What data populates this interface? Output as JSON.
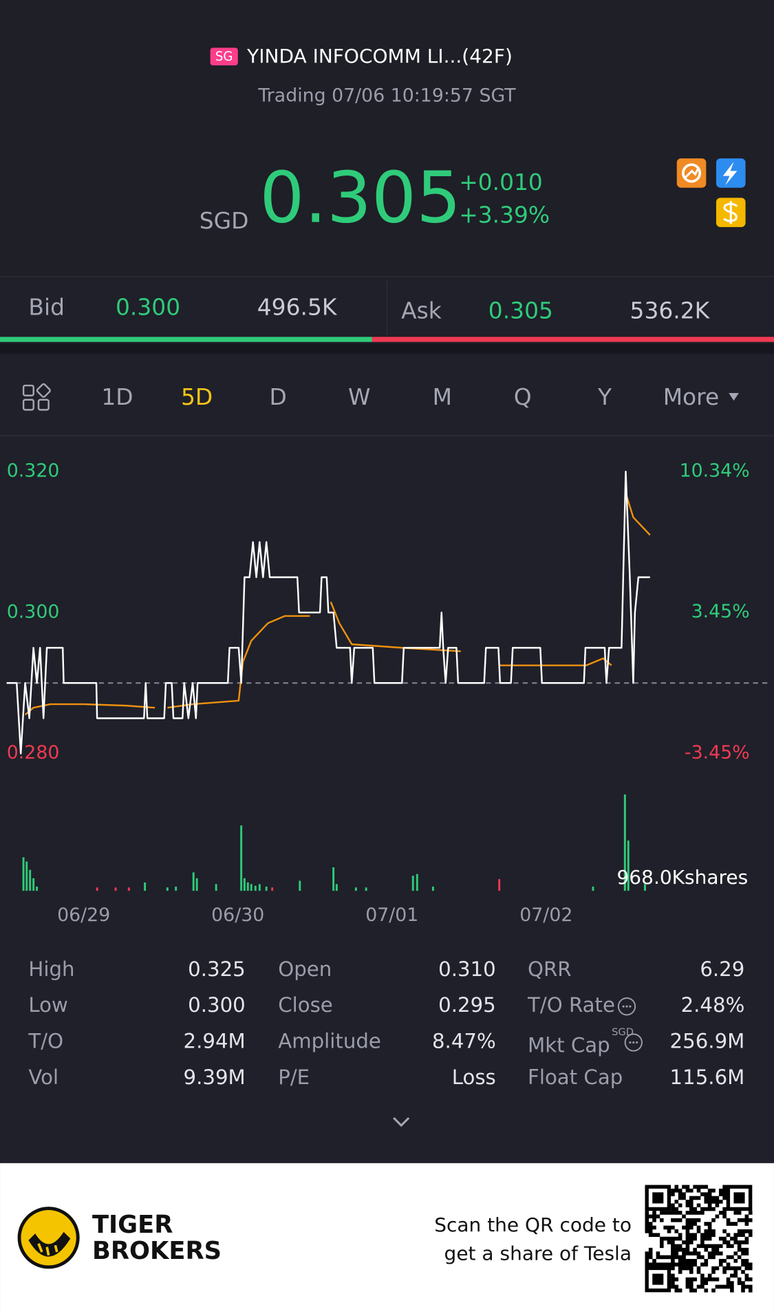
{
  "header": {
    "badge": "SG",
    "title": "YINDA INFOCOMM LI...(42F)",
    "status": "Trading 07/06 10:19:57 SGT"
  },
  "quote": {
    "currency": "SGD",
    "price": "0.305",
    "change": "+0.010",
    "change_pct": "+3.39%"
  },
  "bid_ask": {
    "bid": {
      "label": "Bid",
      "price": "0.300",
      "volume": {
        "value": 496500,
        "label": "496.5K"
      }
    },
    "ask": {
      "label": "Ask",
      "price": "0.305",
      "volume": {
        "value": 536200,
        "label": "536.2K"
      }
    }
  },
  "tabs": {
    "items": [
      "1D",
      "5D",
      "D",
      "W",
      "M",
      "Q",
      "Y",
      "More"
    ],
    "active_index": 1
  },
  "chart_data": {
    "type": "line",
    "xlim": [
      -0.043,
      4.978
    ],
    "xticks": [
      {
        "value": 0.5,
        "label": "06/29"
      },
      {
        "value": 1.5,
        "label": "06/30"
      },
      {
        "value": 2.5,
        "label": "07/01"
      },
      {
        "value": 3.5,
        "label": "07/02"
      }
    ],
    "ylim": [
      0.278,
      0.324
    ],
    "yticks": [
      {
        "value": 0.32,
        "label": "0.320"
      },
      {
        "value": 0.3,
        "label": "0.300"
      },
      {
        "value": 0.28,
        "label": "0.280"
      }
    ],
    "y2lim": [
      -4.14,
      11.72
    ],
    "y2ticks": [
      {
        "value": 10.34,
        "label": "10.34%"
      },
      {
        "value": 3.45,
        "label": "3.45%"
      },
      {
        "value": -3.45,
        "label": "-3.45%"
      }
    ],
    "reference_line": 0.29,
    "up_color": "#2fcb7a",
    "down_color": "#ef3a52",
    "grid": false,
    "series": [
      {
        "color": "#ffffff",
        "x": [
          0,
          0.065,
          0.092,
          0.12,
          0.147,
          0.174,
          0.196,
          0.217,
          0.239,
          0.261,
          0.364,
          0.37,
          0.582,
          0.587,
          0.891,
          0.902,
          0.913,
          1.022,
          1.033,
          1.071,
          1.082,
          1.141,
          1.152,
          1.179,
          1.207,
          1.228,
          1.239,
          1.435,
          1.446,
          1.505,
          1.522,
          1.543,
          1.576,
          1.598,
          1.62,
          1.641,
          1.663,
          1.685,
          1.707,
          1.886,
          1.897,
          2.033,
          2.043,
          2.076,
          2.087,
          2.12,
          2.141,
          2.228,
          2.239,
          2.255,
          2.375,
          2.386,
          2.565,
          2.576,
          2.81,
          2.821,
          2.832,
          2.848,
          2.864,
          2.918,
          2.929,
          3.098,
          3.109,
          3.19,
          3.201,
          3.272,
          3.283,
          3.462,
          3.473,
          3.745,
          3.755,
          3.88,
          3.891,
          3.908,
          3.989,
          4.016,
          4.043,
          4.065,
          4.076,
          4.098,
          4.174
        ],
        "values": [
          0.29,
          0.29,
          0.28,
          0.29,
          0.285,
          0.295,
          0.29,
          0.295,
          0.285,
          0.295,
          0.295,
          0.29,
          0.29,
          0.285,
          0.285,
          0.29,
          0.285,
          0.285,
          0.29,
          0.29,
          0.285,
          0.285,
          0.29,
          0.285,
          0.29,
          0.285,
          0.29,
          0.29,
          0.295,
          0.295,
          0.29,
          0.305,
          0.305,
          0.31,
          0.305,
          0.31,
          0.305,
          0.31,
          0.305,
          0.305,
          0.3,
          0.3,
          0.305,
          0.305,
          0.3,
          0.3,
          0.295,
          0.295,
          0.29,
          0.295,
          0.295,
          0.29,
          0.29,
          0.295,
          0.295,
          0.3,
          0.295,
          0.29,
          0.295,
          0.295,
          0.29,
          0.29,
          0.295,
          0.295,
          0.29,
          0.29,
          0.295,
          0.295,
          0.29,
          0.29,
          0.295,
          0.295,
          0.29,
          0.295,
          0.295,
          0.32,
          0.305,
          0.29,
          0.3,
          0.305,
          0.305
        ]
      },
      {
        "color": "#f0900f",
        "x": [
          0.12,
          0.174,
          0.283,
          0.5,
          0.772,
          0.962,
          0.98,
          1.043,
          1.207,
          1.505,
          1.533,
          1.587,
          1.696,
          1.804,
          1.967,
          2.0,
          2.103,
          2.158,
          2.239,
          2.565,
          2.946,
          3.0,
          3.201,
          3.435,
          3.761,
          3.87,
          3.924,
          3.96,
          4.022,
          4.065,
          4.174
        ],
        "values": [
          0.2855,
          0.2865,
          0.287,
          0.287,
          0.2868,
          0.2865,
          null,
          0.2865,
          0.287,
          0.2875,
          0.293,
          0.296,
          0.2985,
          0.2995,
          0.2995,
          null,
          0.3015,
          0.2985,
          0.2955,
          0.295,
          0.2945,
          null,
          0.2925,
          0.2925,
          0.2925,
          0.2935,
          0.2925,
          null,
          0.3165,
          0.3135,
          0.311
        ]
      }
    ],
    "volume": {
      "max_label": "968.0Kshares",
      "ylim": [
        0,
        968000
      ],
      "x": [
        0.109,
        0.13,
        0.152,
        0.174,
        0.196,
        0.587,
        0.707,
        0.793,
        0.897,
        1.043,
        1.098,
        1.212,
        1.234,
        1.359,
        1.522,
        1.543,
        1.565,
        1.587,
        1.614,
        1.641,
        1.685,
        1.723,
        1.902,
        2.12,
        2.141,
        2.266,
        2.332,
        2.636,
        2.663,
        2.766,
        3.196,
        3.804,
        4.011,
        4.033,
        4.141
      ],
      "values": [
        336700,
        294600,
        210400,
        126300,
        42100,
        33700,
        33700,
        33700,
        84200,
        33700,
        42100,
        185200,
        126300,
        67300,
        656500,
        126300,
        84200,
        67300,
        50500,
        67300,
        42100,
        33700,
        101000,
        235700,
        67300,
        33700,
        33700,
        151500,
        168300,
        42100,
        117800,
        42100,
        968000,
        505000,
        67300
      ],
      "colors": [
        "#2fcb7a",
        "#2fcb7a",
        "#2fcb7a",
        "#2fcb7a",
        "#2fcb7a",
        "#ef3a52",
        "#ef3a52",
        "#ef3a52",
        "#2fcb7a",
        "#2fcb7a",
        "#2fcb7a",
        "#2fcb7a",
        "#2fcb7a",
        "#2fcb7a",
        "#2fcb7a",
        "#2fcb7a",
        "#2fcb7a",
        "#2fcb7a",
        "#2fcb7a",
        "#2fcb7a",
        "#2fcb7a",
        "#ef3a52",
        "#2fcb7a",
        "#2fcb7a",
        "#2fcb7a",
        "#2fcb7a",
        "#2fcb7a",
        "#2fcb7a",
        "#2fcb7a",
        "#2fcb7a",
        "#ef3a52",
        "#2fcb7a",
        "#2fcb7a",
        "#2fcb7a",
        "#2fcb7a"
      ]
    }
  },
  "stats": [
    [
      {
        "label": "High",
        "value": "0.325"
      },
      {
        "label": "Open",
        "value": "0.310"
      },
      {
        "label": "QRR",
        "value": "6.29"
      }
    ],
    [
      {
        "label": "Low",
        "value": "0.300"
      },
      {
        "label": "Close",
        "value": "0.295"
      },
      {
        "label": "T/O Rate",
        "value": "2.48%",
        "info": true
      }
    ],
    [
      {
        "label": "T/O",
        "value": "2.94M"
      },
      {
        "label": "Amplitude",
        "value": "8.47%"
      },
      {
        "label": "Mkt Cap",
        "sup": "SGD",
        "value": "256.9M",
        "info": true
      }
    ],
    [
      {
        "label": "Vol",
        "value": "9.39M"
      },
      {
        "label": "P/E",
        "value": "Loss"
      },
      {
        "label": "Float Cap",
        "value": "115.6M"
      }
    ]
  ],
  "footer": {
    "brand": [
      "TIGER",
      "BROKERS"
    ],
    "promo": [
      "Scan the QR code to",
      "get a share of Tesla"
    ]
  }
}
